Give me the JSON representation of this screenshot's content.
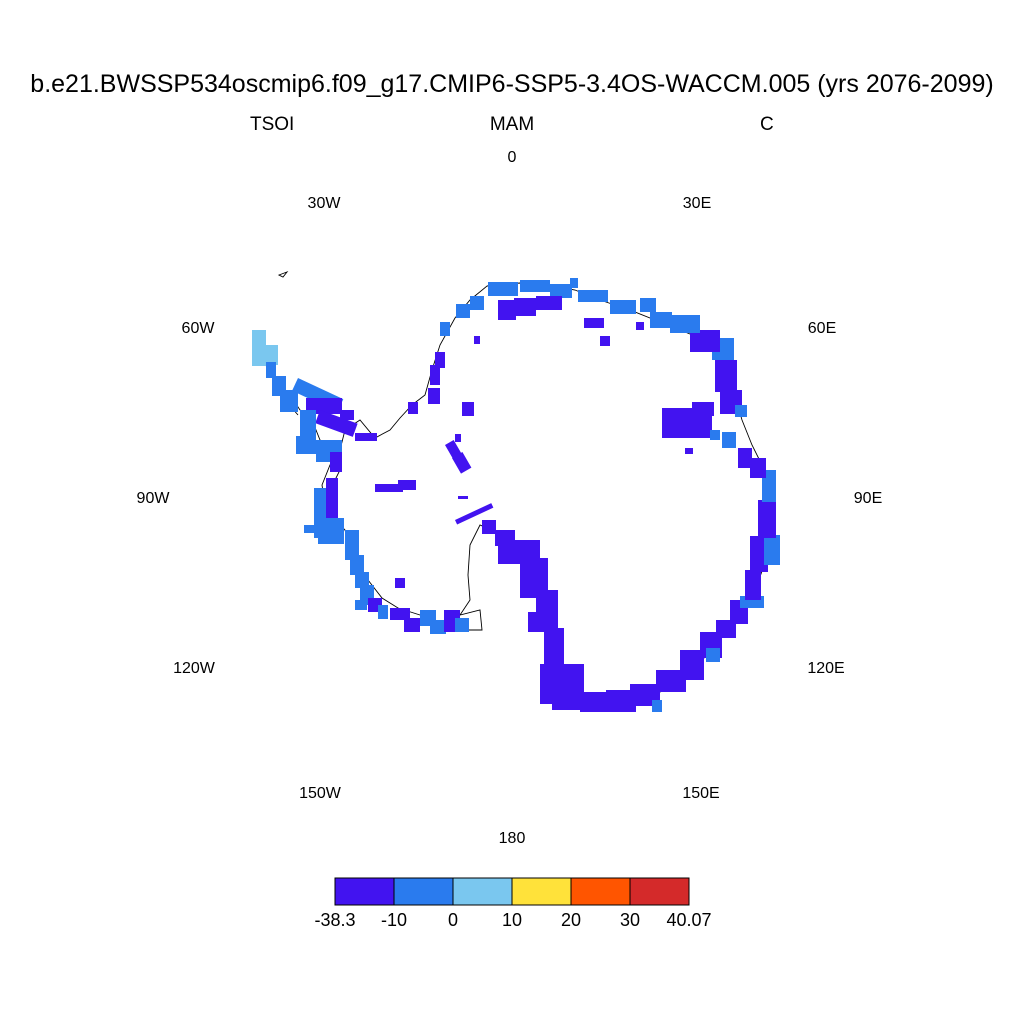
{
  "title": "b.e21.BWSSP534oscmip6.f09_g17.CMIP6-SSP5-3.4OS-WACCM.005 (yrs 2076-2099)",
  "subtitle": {
    "left": "TSOI",
    "center": "MAM",
    "right": "C"
  },
  "longitude_labels": [
    {
      "id": "lon-0",
      "text": "0"
    },
    {
      "id": "lon-30e",
      "text": "30E"
    },
    {
      "id": "lon-60e",
      "text": "60E"
    },
    {
      "id": "lon-90e",
      "text": "90E"
    },
    {
      "id": "lon-120e",
      "text": "120E"
    },
    {
      "id": "lon-150e",
      "text": "150E"
    },
    {
      "id": "lon-180",
      "text": "180"
    },
    {
      "id": "lon-150w",
      "text": "150W"
    },
    {
      "id": "lon-120w",
      "text": "120W"
    },
    {
      "id": "lon-90w",
      "text": "90W"
    },
    {
      "id": "lon-60w",
      "text": "60W"
    },
    {
      "id": "lon-30w",
      "text": "30W"
    }
  ],
  "colorbar": {
    "colors": [
      "#4213f0",
      "#2a7bee",
      "#7ac7ef",
      "#ffe23a",
      "#ff5500",
      "#d42a2a"
    ],
    "labels": [
      "-38.3",
      "-10",
      "0",
      "10",
      "20",
      "30",
      "40.07"
    ]
  }
}
